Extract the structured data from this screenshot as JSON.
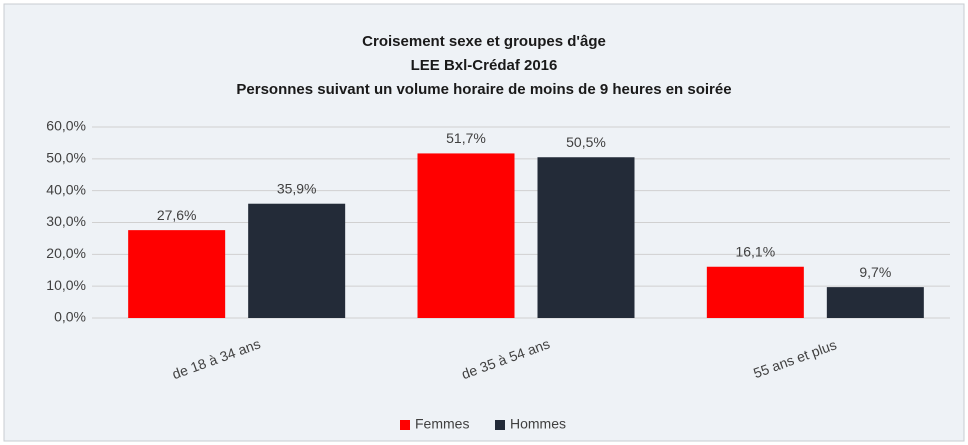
{
  "chart_data": {
    "type": "bar",
    "title": "Croisement sexe et groupes d'âge",
    "subtitle": [
      "LEE Bxl-Crédaf 2016",
      "Personnes suivant un volume horaire de moins de 9 heures en soirée"
    ],
    "categories": [
      "de 18 à 34 ans",
      "de 35 à 54 ans",
      "55 ans et plus"
    ],
    "series": [
      {
        "name": "Femmes",
        "color": "#ff0000",
        "values": [
          27.6,
          51.7,
          16.1
        ],
        "value_labels": [
          "27,6%",
          "51,7%",
          "16,1%"
        ]
      },
      {
        "name": "Hommes",
        "color": "#232b38",
        "values": [
          35.9,
          50.5,
          9.7
        ],
        "value_labels": [
          "35,9%",
          "50,5%",
          "9,7%"
        ]
      }
    ],
    "ylim": [
      0,
      60
    ],
    "yticks": [
      {
        "value": 0,
        "label": "0,0%"
      },
      {
        "value": 10,
        "label": "10,0%"
      },
      {
        "value": 20,
        "label": "20,0%"
      },
      {
        "value": 30,
        "label": "30,0%"
      },
      {
        "value": 40,
        "label": "40,0%"
      },
      {
        "value": 50,
        "label": "50,0%"
      },
      {
        "value": 60,
        "label": "60,0%"
      }
    ],
    "grid": true,
    "legend": "bottom"
  }
}
